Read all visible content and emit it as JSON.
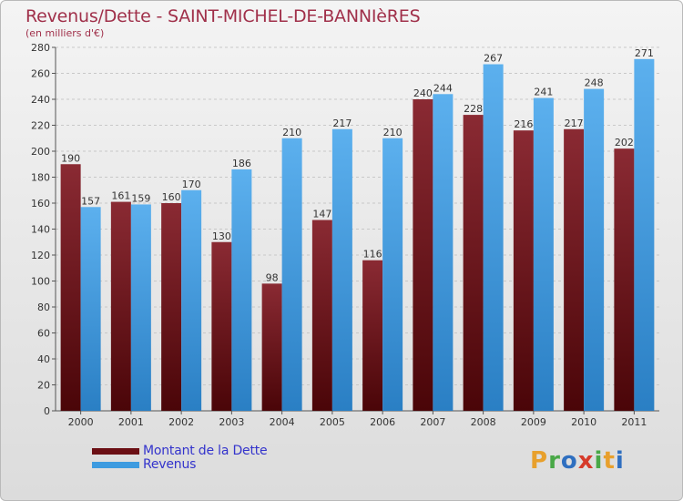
{
  "title": "Revenus/Dette - SAINT-MICHEL-DE-BANNIèRES",
  "subtitle": "(en milliers d'€)",
  "chart_data": {
    "type": "bar",
    "title": "Revenus/Dette - SAINT-MICHEL-DE-BANNIèRES",
    "ylabel": "(en milliers d'€)",
    "categories": [
      "2000",
      "2001",
      "2002",
      "2003",
      "2004",
      "2005",
      "2006",
      "2007",
      "2008",
      "2009",
      "2010",
      "2011"
    ],
    "series": [
      {
        "name": "Montant de la Dette",
        "color": "#7a1f27",
        "values": [
          190,
          161,
          160,
          130,
          98,
          147,
          116,
          240,
          228,
          216,
          217,
          202
        ]
      },
      {
        "name": "Revenus",
        "color": "#4aa3e8",
        "values": [
          157,
          159,
          170,
          186,
          210,
          217,
          210,
          244,
          267,
          241,
          248,
          271
        ]
      }
    ],
    "ylim": [
      0,
      280
    ],
    "yticks": [
      0,
      20,
      40,
      60,
      80,
      100,
      120,
      140,
      160,
      180,
      200,
      220,
      240,
      260,
      280
    ],
    "grid": true,
    "legend_position": "bottom-left"
  },
  "legend": [
    {
      "label": "Montant de la Dette",
      "color": "#6b0f14"
    },
    {
      "label": "Revenus",
      "color": "#3d9be0"
    }
  ],
  "logo": {
    "letters": [
      "P",
      "r",
      "o",
      "x",
      "i",
      "t",
      "i"
    ],
    "colors": [
      "#e8a02c",
      "#49a847",
      "#2f6fc0",
      "#d63a2a",
      "#49a847",
      "#e8a02c",
      "#2f6fc0"
    ]
  }
}
